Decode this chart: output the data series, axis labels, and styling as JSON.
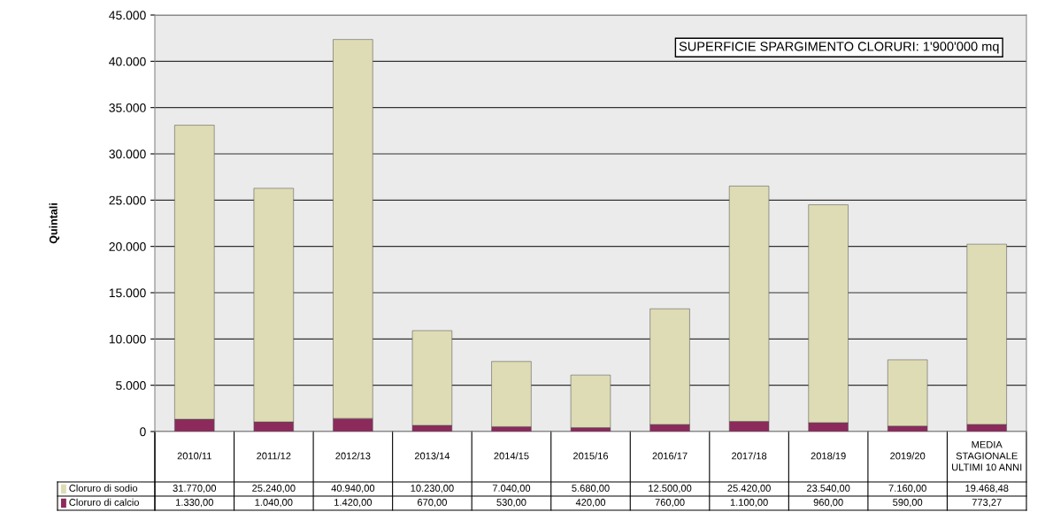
{
  "chart_data": {
    "type": "bar",
    "stacked": true,
    "ylabel": "Quintali",
    "categories": [
      "2010/11",
      "2011/12",
      "2012/13",
      "2013/14",
      "2014/15",
      "2015/16",
      "2016/17",
      "2017/18",
      "2018/19",
      "2019/20",
      "MEDIA\nSTAGIONALE\nULTIMI 10 ANNI"
    ],
    "series": [
      {
        "name": "Cloruro di calcio",
        "color": "#8c2a5c",
        "values": [
          1330,
          1040,
          1420,
          670,
          530,
          420,
          760,
          1100,
          960,
          590,
          773.27
        ],
        "value_labels": [
          "1.330,00",
          "1.040,00",
          "1.420,00",
          "670,00",
          "530,00",
          "420,00",
          "760,00",
          "1.100,00",
          "960,00",
          "590,00",
          "773,27"
        ]
      },
      {
        "name": "Cloruro di sodio",
        "color": "#dedcb4",
        "values": [
          31770,
          25240,
          40940,
          10230,
          7040,
          5680,
          12500,
          25420,
          23540,
          7160,
          19468.48
        ],
        "value_labels": [
          "31.770,00",
          "25.240,00",
          "40.940,00",
          "10.230,00",
          "7.040,00",
          "5.680,00",
          "12.500,00",
          "25.420,00",
          "23.540,00",
          "7.160,00",
          "19.468,48"
        ]
      }
    ],
    "ylim": [
      0,
      45000
    ],
    "yticks": [
      0,
      {
        "value": 5000,
        "label": "5.000"
      },
      {
        "value": 10000,
        "label": "10.000"
      },
      {
        "value": 15000,
        "label": "15.000"
      },
      {
        "value": 20000,
        "label": "20.000"
      },
      {
        "value": 25000,
        "label": "25.000"
      },
      {
        "value": 30000,
        "label": "30.000"
      },
      {
        "value": 35000,
        "label": "35.000"
      },
      {
        "value": 40000,
        "label": "40.000"
      },
      {
        "value": 45000,
        "label": "45.000"
      }
    ],
    "grid": "y",
    "legend": "bottom left",
    "annotations": [
      "SUPERFICIE SPARGIMENTO CLORURI: 1'900'000 mq"
    ]
  }
}
